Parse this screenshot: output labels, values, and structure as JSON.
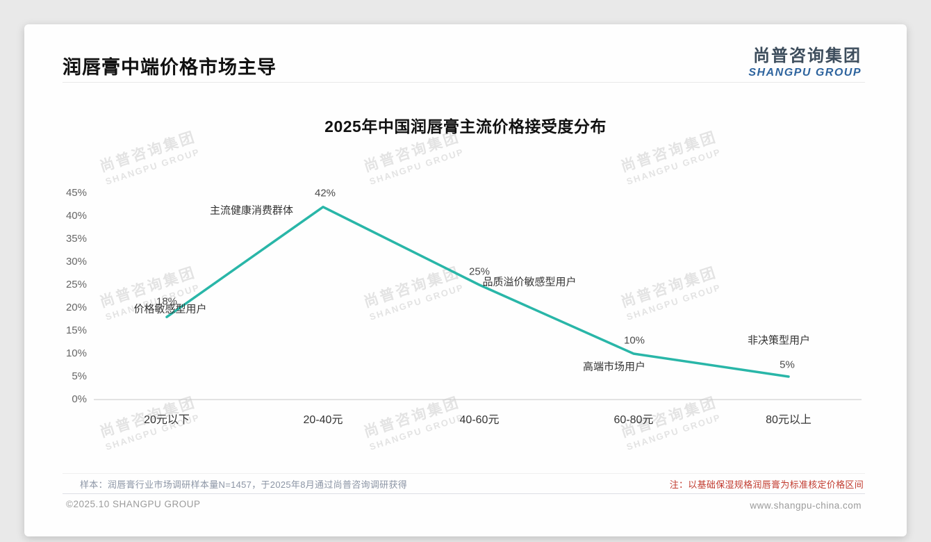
{
  "page": {
    "header": {
      "title": "润唇膏中端价格市场主导"
    },
    "logo": {
      "cn": "尚普咨询集团",
      "en": "SHANGPU GROUP"
    },
    "watermark": {
      "cn": "尚普咨询集团",
      "en": "SHANGPU GROUP"
    },
    "footnote": {
      "sample": "样本：润唇膏行业市场调研样本量N=1457，于2025年8月通过尚普咨询调研获得",
      "note": "注：以基础保湿规格润唇膏为标准核定价格区间"
    },
    "footer": {
      "copyright": "©2025.10 SHANGPU GROUP",
      "website": "www.shangpu-china.com"
    }
  },
  "chart_data": {
    "type": "line",
    "title": "2025年中国润唇膏主流价格接受度分布",
    "categories": [
      "20元以下",
      "20-40元",
      "40-60元",
      "60-80元",
      "80元以上"
    ],
    "values": [
      18,
      42,
      25,
      10,
      5
    ],
    "value_labels": [
      "18%",
      "42%",
      "25%",
      "10%",
      "5%"
    ],
    "annotations": [
      "价格敏感型用户",
      "主流健康消费群体",
      "品质溢价敏感型用户",
      "高端市场用户",
      "非决策型用户"
    ],
    "y_ticks": [
      "45%",
      "40%",
      "35%",
      "30%",
      "25%",
      "20%",
      "15%",
      "10%",
      "5%",
      "0%"
    ],
    "ylim": [
      0,
      45
    ],
    "xlabel": "",
    "ylabel": "",
    "grid": false,
    "legend": "none",
    "line_color": "#29b6a8"
  },
  "colors": {
    "accent_line": "#29b6a8",
    "note_red": "#c13a2e",
    "logo_blue": "#2e649e",
    "logo_dark": "#3d4d5c",
    "axis_line": "#c8c8c8"
  }
}
